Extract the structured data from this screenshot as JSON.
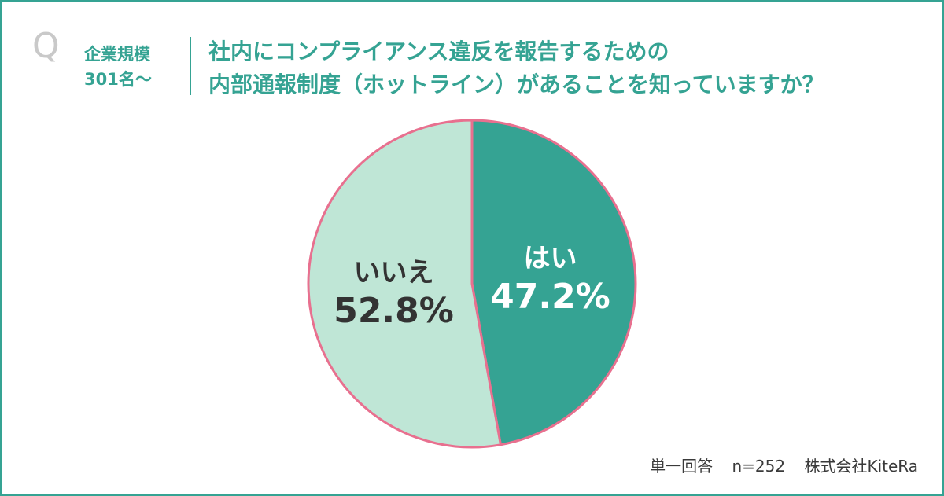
{
  "header": {
    "q_mark": "Q",
    "segment_lines": [
      "企業規模",
      "301名～"
    ],
    "question_lines": [
      "社内にコンプライアンス違反を報告するための",
      "内部通報制度（ホットライン）があることを知っていますか？"
    ]
  },
  "chart_data": {
    "type": "pie",
    "slices": [
      {
        "label": "はい",
        "value": 47.2,
        "value_label": "47.2%",
        "color": "#35a393",
        "text_color": "#ffffff"
      },
      {
        "label": "いいえ",
        "value": 52.8,
        "value_label": "52.8%",
        "color": "#bfe6d6",
        "text_color": "#333333"
      }
    ],
    "start": "top",
    "direction": "clockwise",
    "outline_color": "#e8708f"
  },
  "footer": {
    "answer_type": "単一回答",
    "sample": "n=252",
    "source": "株式会社KiteRa"
  }
}
